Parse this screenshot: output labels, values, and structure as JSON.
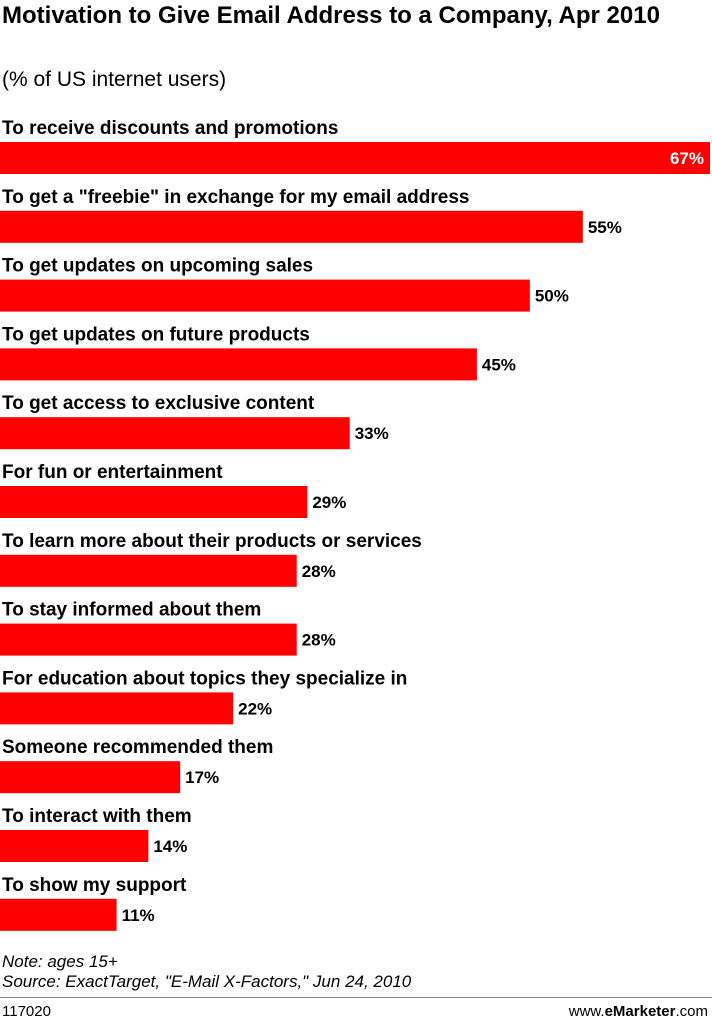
{
  "chart_data": {
    "type": "bar",
    "orientation": "horizontal",
    "title": "Motivation to Give Email Address to a Company, Apr 2010",
    "subtitle": "(% of US internet users)",
    "categories": [
      "To receive discounts and promotions",
      "To get a \"freebie\" in exchange for my email address",
      "To get updates on upcoming sales",
      "To get updates on future products",
      "To get access to exclusive content",
      "For fun or entertainment",
      "To learn more about their products or services",
      "To stay informed about them",
      "For education about topics they specialize in",
      "Someone recommended them",
      "To interact with them",
      "To show my support"
    ],
    "values": [
      67,
      55,
      50,
      45,
      33,
      29,
      28,
      28,
      22,
      17,
      14,
      11
    ],
    "value_labels": [
      "67%",
      "55%",
      "50%",
      "45%",
      "33%",
      "29%",
      "28%",
      "28%",
      "22%",
      "17%",
      "14%",
      "11%"
    ],
    "xlim": [
      0,
      67
    ],
    "grid": false,
    "colors": {
      "bar": "#ff0000",
      "label_inside": "#ffffff",
      "label_outside": "#000000"
    }
  },
  "footer": {
    "note": "Note: ages 15+",
    "source": "Source: ExactTarget, \"E-Mail X-Factors,\" Jun 24, 2010",
    "id": "117020",
    "brand_prefix": "www.",
    "brand_name": "eMarketer",
    "brand_suffix": ".com"
  }
}
